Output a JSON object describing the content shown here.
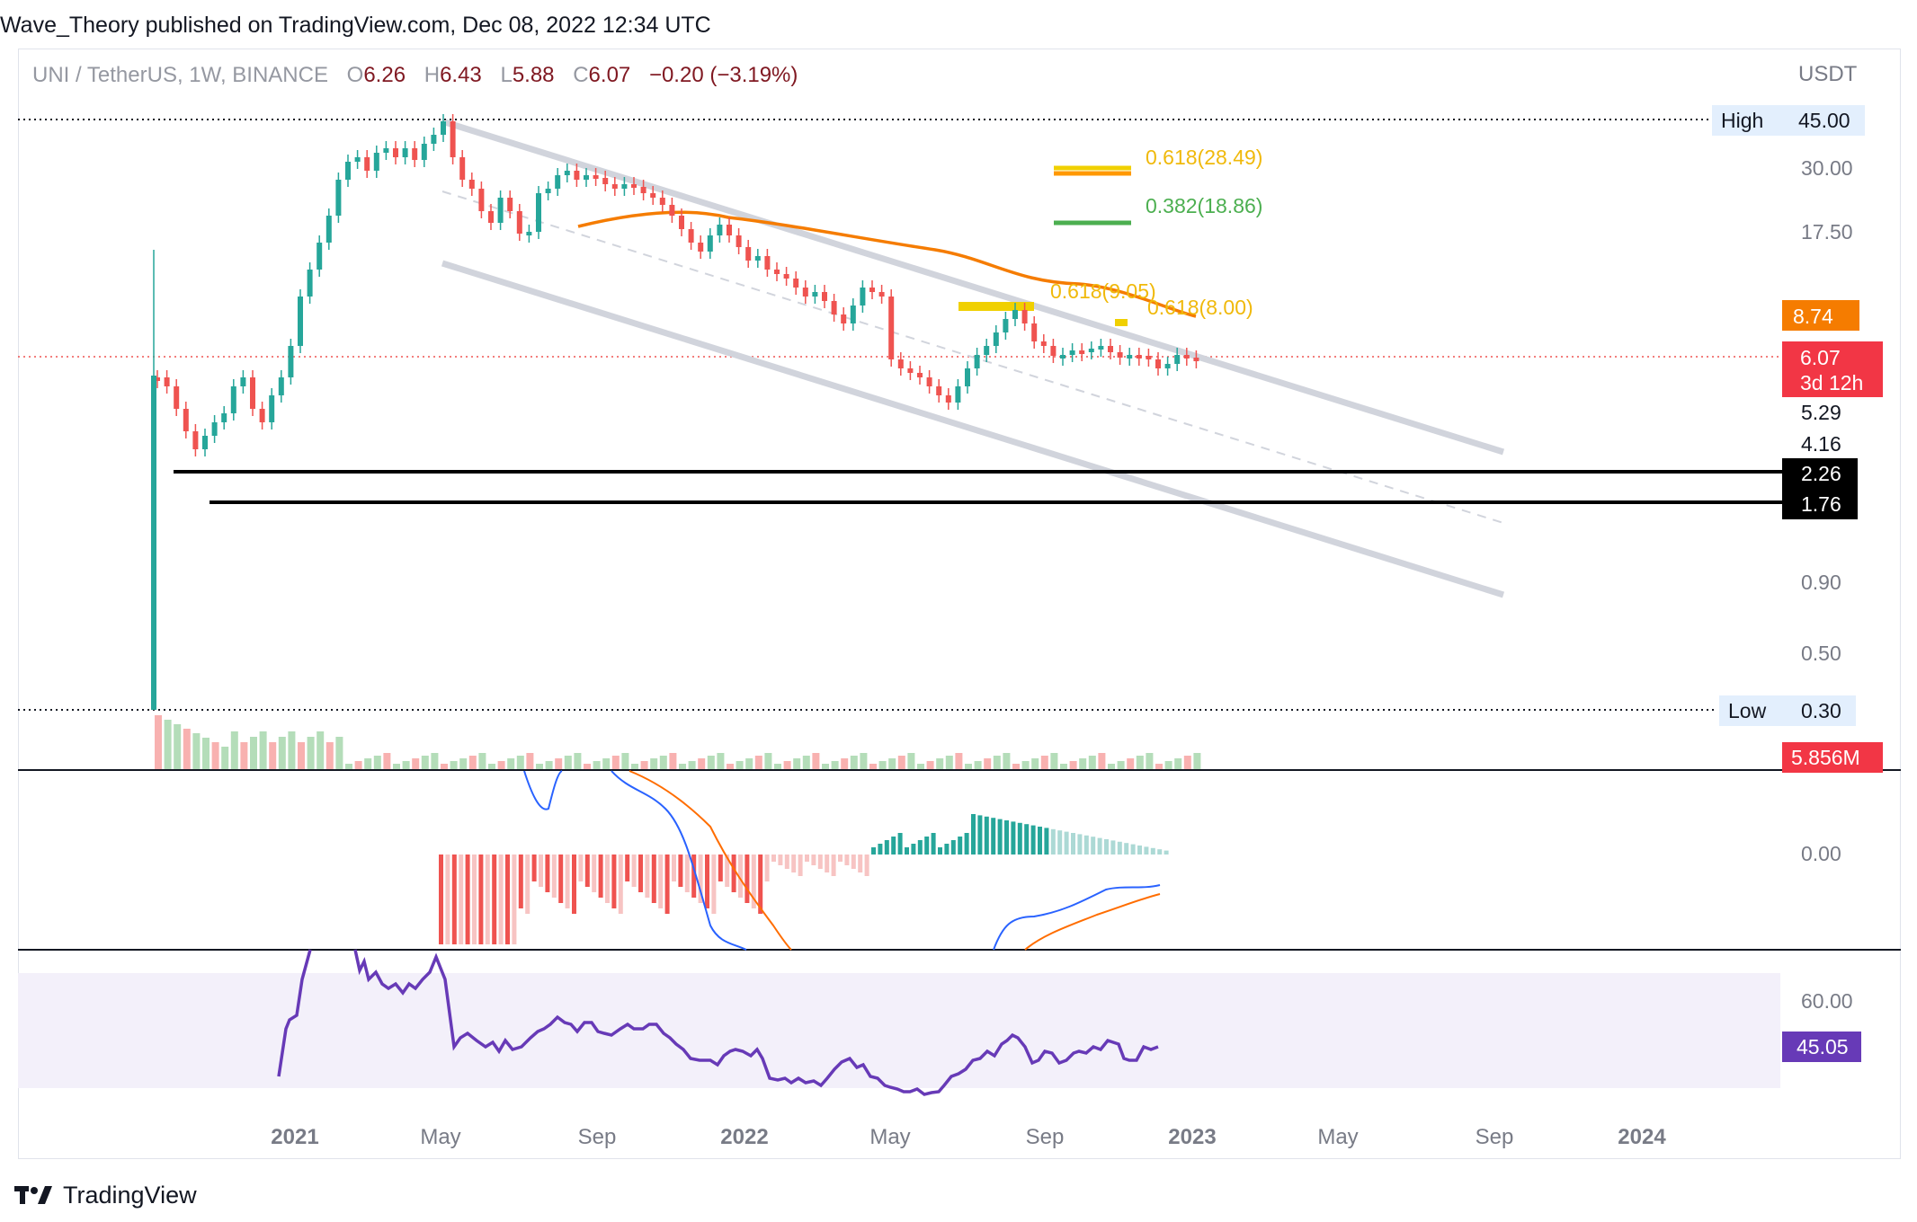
{
  "header": {
    "text": "Wave_Theory published on TradingView.com, Dec 08, 2022 12:34 UTC"
  },
  "legend": {
    "symbol": "UNI / TetherUS, 1W, BINANCE",
    "open_key": "O",
    "open": "6.26",
    "high_key": "H",
    "high": "6.43",
    "low_key": "L",
    "low": "5.88",
    "close_key": "C",
    "close": "6.07",
    "change": "−0.20 (−3.19%)"
  },
  "axis": {
    "currency": "USDT",
    "ticks": [
      "30.00",
      "17.50",
      "5.29",
      "4.16",
      "0.90",
      "0.50"
    ],
    "macd_ticks": [
      "0.00"
    ],
    "rsi_ticks": [
      "60.00"
    ]
  },
  "labels": {
    "high_label": "High",
    "high_value": "45.00",
    "low_label": "Low",
    "low_value": "0.30",
    "ma_value": "8.74",
    "price_value": "6.07",
    "countdown": "3d 12h",
    "support_upper": "2.26",
    "support_lower": "1.76",
    "volume": "5.856M",
    "rsi_value": "45.05"
  },
  "fib": {
    "top_618": "0.618(28.49)",
    "top_382": "0.382(18.86)",
    "mid_618": "0.618(9.05)",
    "right_618": "0.618(8.00)"
  },
  "time_axis": [
    "2021",
    "May",
    "Sep",
    "2022",
    "May",
    "Sep",
    "2023",
    "May",
    "Sep",
    "2024"
  ],
  "footer": {
    "brand": "TradingView"
  },
  "colors": {
    "up": "#26a69a",
    "down": "#ef5350",
    "ema": "#f57c00",
    "rsi": "#673ab7",
    "macd": "#2962ff",
    "signal": "#ff6d00",
    "fib_gold": "#f0b90b",
    "fib_green": "#4caf50"
  }
}
